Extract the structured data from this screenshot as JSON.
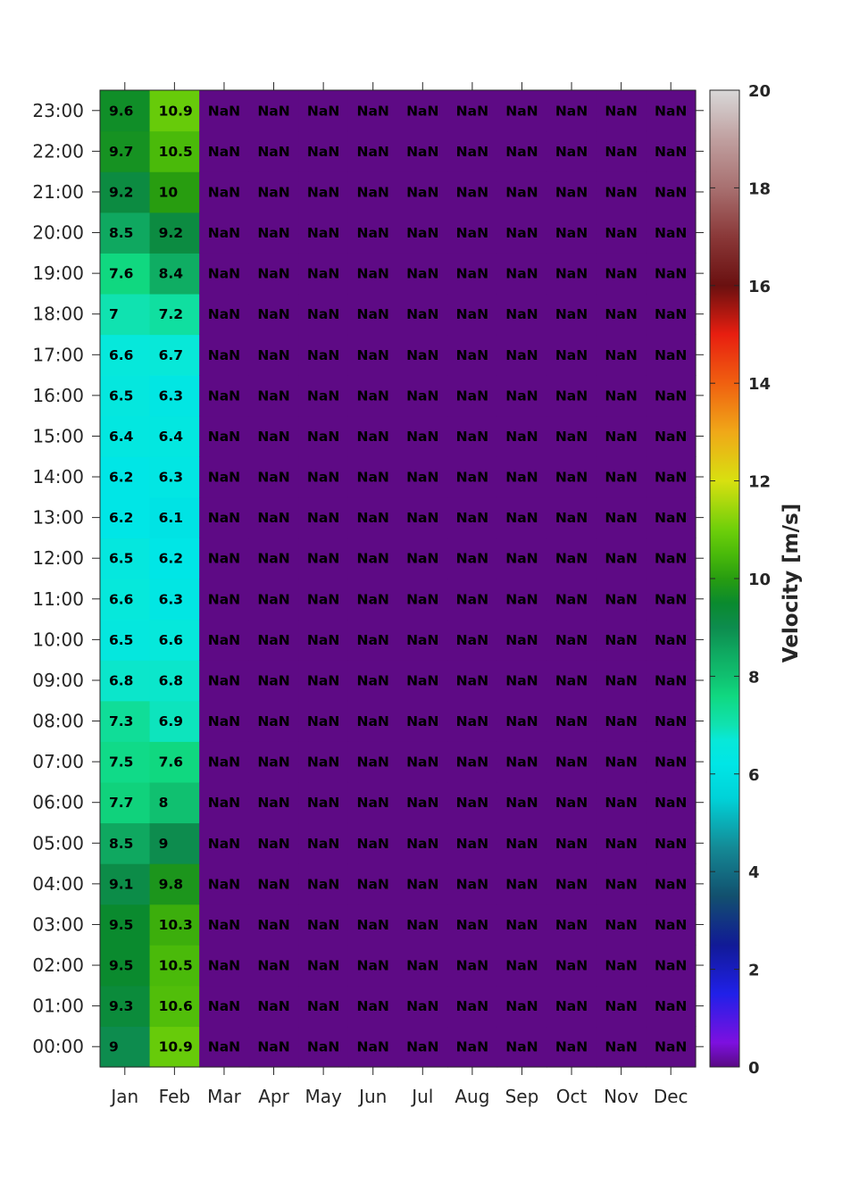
{
  "chart_data": {
    "type": "heatmap",
    "x_categories": [
      "Jan",
      "Feb",
      "Mar",
      "Apr",
      "May",
      "Jun",
      "Jul",
      "Aug",
      "Sep",
      "Oct",
      "Nov",
      "Dec"
    ],
    "y_categories": [
      "00:00",
      "01:00",
      "02:00",
      "03:00",
      "04:00",
      "05:00",
      "06:00",
      "07:00",
      "08:00",
      "09:00",
      "10:00",
      "11:00",
      "12:00",
      "13:00",
      "14:00",
      "15:00",
      "16:00",
      "17:00",
      "18:00",
      "19:00",
      "20:00",
      "21:00",
      "22:00",
      "23:00"
    ],
    "values": {
      "Jan": [
        9,
        9.3,
        9.5,
        9.5,
        9.1,
        8.5,
        7.7,
        7.5,
        7.3,
        6.8,
        6.5,
        6.6,
        6.5,
        6.2,
        6.2,
        6.4,
        6.5,
        6.6,
        7,
        7.6,
        8.5,
        9.2,
        9.7,
        9.6
      ],
      "Feb": [
        10.9,
        10.6,
        10.5,
        10.3,
        9.8,
        9,
        8,
        7.6,
        6.9,
        6.8,
        6.6,
        6.3,
        6.2,
        6.1,
        6.3,
        6.4,
        6.3,
        6.7,
        7.2,
        8.4,
        9.2,
        10,
        10.5,
        10.9
      ]
    },
    "missing_label": "NaN",
    "colorbar": {
      "label": "Velocity [m/s]",
      "range": [
        0,
        20
      ],
      "ticks": [
        0,
        2,
        4,
        6,
        8,
        10,
        12,
        14,
        16,
        18,
        20
      ]
    },
    "colors": {
      "missing": "#5e0a85",
      "stops": [
        [
          0.0,
          "#5a0a84"
        ],
        [
          0.5,
          "#7d10e0"
        ],
        [
          1.5,
          "#2020e8"
        ],
        [
          2.5,
          "#111a96"
        ],
        [
          3.5,
          "#12506e"
        ],
        [
          4.5,
          "#148a96"
        ],
        [
          5.5,
          "#00d2d8"
        ],
        [
          6.2,
          "#00e6e6"
        ],
        [
          6.7,
          "#08e8d8"
        ],
        [
          7.0,
          "#10e2b0"
        ],
        [
          7.6,
          "#10d880"
        ],
        [
          8.0,
          "#10c070"
        ],
        [
          8.5,
          "#0fa860"
        ],
        [
          9.0,
          "#0d8c4e"
        ],
        [
          9.5,
          "#0a8a2e"
        ],
        [
          10.0,
          "#289d10"
        ],
        [
          10.5,
          "#4aba0a"
        ],
        [
          11.0,
          "#6ecf0a"
        ],
        [
          12.0,
          "#d8e010"
        ],
        [
          13.0,
          "#f0a818"
        ],
        [
          14.0,
          "#f06010"
        ],
        [
          15.0,
          "#e81e10"
        ],
        [
          16.0,
          "#6a1010"
        ],
        [
          17.0,
          "#8a3838"
        ],
        [
          18.0,
          "#a87070"
        ],
        [
          19.0,
          "#c0a0a0"
        ],
        [
          20.0,
          "#d8d8d8"
        ]
      ]
    }
  }
}
